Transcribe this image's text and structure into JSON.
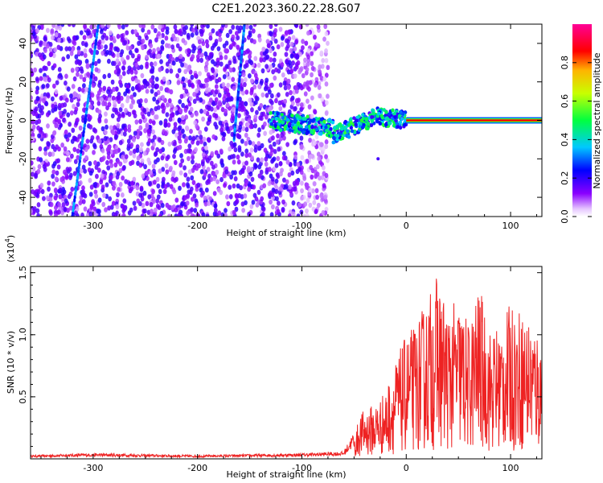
{
  "title": "C2E1.2023.360.22.28.G07",
  "chart_data": [
    {
      "type": "heatmap",
      "xlabel": "Height of straight line (km)",
      "ylabel": "Frequency (Hz)",
      "xlim": [
        -360,
        130
      ],
      "ylim": [
        -50,
        50
      ],
      "xticks": [
        -300,
        -200,
        -100,
        0,
        100
      ],
      "yticks": [
        -40,
        -20,
        0,
        20,
        40
      ],
      "colorbar": {
        "label": "Normalized spectral amplitude",
        "ticks": [
          "0.0",
          "0.2",
          "0.4",
          "0.6",
          "0.8"
        ],
        "range": [
          0,
          1
        ],
        "colormap": "rainbow (violet-blue-cyan-green-yellow-red-magenta)"
      },
      "features": [
        {
          "name": "noise floor",
          "x": [
            -360,
            -75
          ],
          "y": [
            -50,
            50
          ],
          "amplitude": 0.15
        },
        {
          "name": "diagonal streak",
          "x": [
            -320,
            -295
          ],
          "y": [
            -50,
            50
          ],
          "amplitude": 0.3
        },
        {
          "name": "diagonal streak",
          "x": [
            -165,
            -155
          ],
          "y": [
            -10,
            50
          ],
          "amplitude": 0.3
        },
        {
          "name": "signal onset band",
          "x": [
            -130,
            0
          ],
          "y": [
            -15,
            5
          ],
          "amplitude": 0.45
        },
        {
          "name": "carrier line",
          "x": [
            0,
            130
          ],
          "y": [
            0,
            0
          ],
          "amplitude": 0.95
        }
      ]
    },
    {
      "type": "line",
      "xlabel": "Height of straight line (km)",
      "ylabel": "SNR (10 * v/v)",
      "yscale_label": "(x10",
      "yscale_exp": "4",
      "xlim": [
        -360,
        130
      ],
      "ylim": [
        0,
        1.55
      ],
      "xticks": [
        -300,
        -200,
        -100,
        0,
        100
      ],
      "yticks": [
        "0.5",
        "1.0",
        "1.5"
      ],
      "color": "#ee2222",
      "series": [
        {
          "x": [
            -360,
            -300,
            -200,
            -100,
            -60,
            -50,
            -45,
            -40,
            -30,
            -20,
            -10,
            0,
            10,
            20,
            30,
            40,
            50,
            60,
            70,
            80,
            90,
            100,
            110,
            120,
            130
          ],
          "y": [
            0.02,
            0.03,
            0.02,
            0.03,
            0.04,
            0.15,
            0.35,
            0.4,
            0.45,
            0.55,
            0.8,
            1.0,
            1.1,
            1.3,
            1.5,
            1.2,
            1.3,
            1.1,
            1.4,
            1.05,
            1.1,
            1.25,
            1.2,
            1.15,
            1.0
          ]
        }
      ]
    }
  ]
}
